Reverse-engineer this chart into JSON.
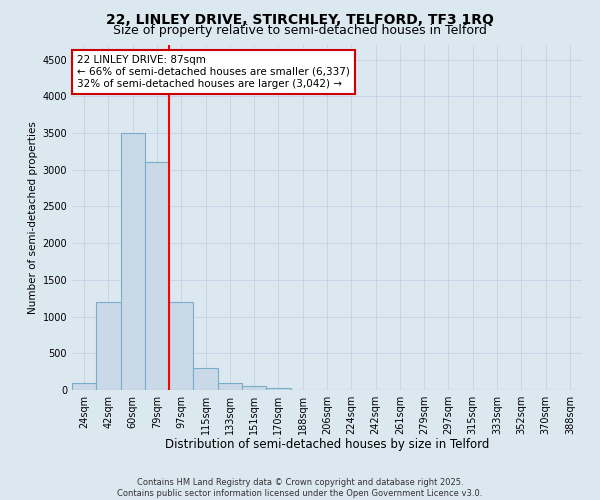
{
  "title": "22, LINLEY DRIVE, STIRCHLEY, TELFORD, TF3 1RQ",
  "subtitle": "Size of property relative to semi-detached houses in Telford",
  "xlabel": "Distribution of semi-detached houses by size in Telford",
  "ylabel": "Number of semi-detached properties",
  "categories": [
    "24sqm",
    "42sqm",
    "60sqm",
    "79sqm",
    "97sqm",
    "115sqm",
    "133sqm",
    "151sqm",
    "170sqm",
    "188sqm",
    "206sqm",
    "224sqm",
    "242sqm",
    "261sqm",
    "279sqm",
    "297sqm",
    "315sqm",
    "333sqm",
    "352sqm",
    "370sqm",
    "388sqm"
  ],
  "values": [
    100,
    1200,
    3500,
    3100,
    1200,
    300,
    100,
    50,
    30,
    5,
    0,
    0,
    0,
    0,
    0,
    0,
    0,
    0,
    0,
    0,
    0
  ],
  "bar_color": "#c9d9e8",
  "bar_edge_color": "#7aaec8",
  "red_line_x": 3.5,
  "annotation_line1": "22 LINLEY DRIVE: 87sqm",
  "annotation_line2": "← 66% of semi-detached houses are smaller (6,337)",
  "annotation_line3": "32% of semi-detached houses are larger (3,042) →",
  "annotation_box_color": "#ffffff",
  "annotation_box_edge": "#cc0000",
  "ylim": [
    0,
    4700
  ],
  "yticks": [
    0,
    500,
    1000,
    1500,
    2000,
    2500,
    3000,
    3500,
    4000,
    4500
  ],
  "grid_color": "#c8d4e8",
  "background_color": "#dce8f0",
  "footer": "Contains HM Land Registry data © Crown copyright and database right 2025.\nContains public sector information licensed under the Open Government Licence v3.0.",
  "title_fontsize": 10,
  "subtitle_fontsize": 9,
  "xlabel_fontsize": 8.5,
  "ylabel_fontsize": 7.5,
  "tick_fontsize": 7,
  "annotation_fontsize": 7.5,
  "footer_fontsize": 6
}
